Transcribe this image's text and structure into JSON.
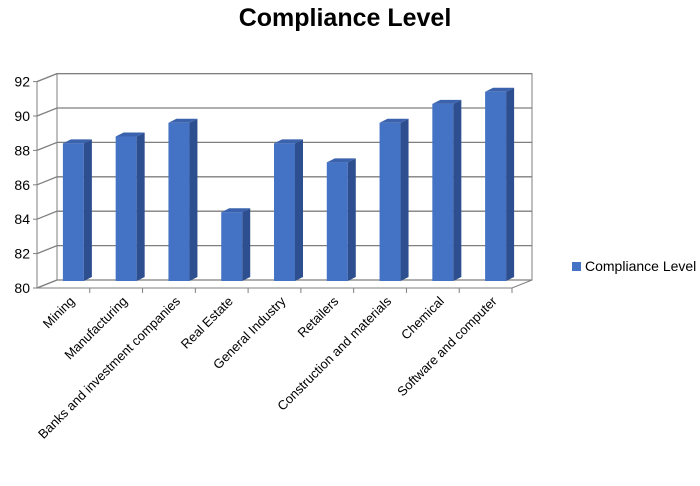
{
  "chart_data": {
    "type": "bar",
    "title": "Compliance Level",
    "categories": [
      "Mining",
      "Manufacturing",
      "Banks and investment companies",
      "Real Estate",
      "General Industry",
      "Retailers",
      "Construction and materials",
      "Chemical",
      "Software and computer"
    ],
    "series": [
      {
        "name": "Compliance Level",
        "values": [
          88,
          88.4,
          89.2,
          84,
          88,
          86.9,
          89.2,
          90.3,
          91
        ]
      }
    ],
    "ylim": [
      80,
      92
    ],
    "yticks": [
      "80",
      "82",
      "84",
      "86",
      "88",
      "90",
      "92"
    ],
    "grid": true,
    "legend_position": "right",
    "colors": {
      "bar_front": "#4472c4",
      "bar_side": "#2e4f8f",
      "bar_top": "#3a62ad",
      "grid": "#7f7f7f",
      "wall": "#ffffff"
    }
  }
}
